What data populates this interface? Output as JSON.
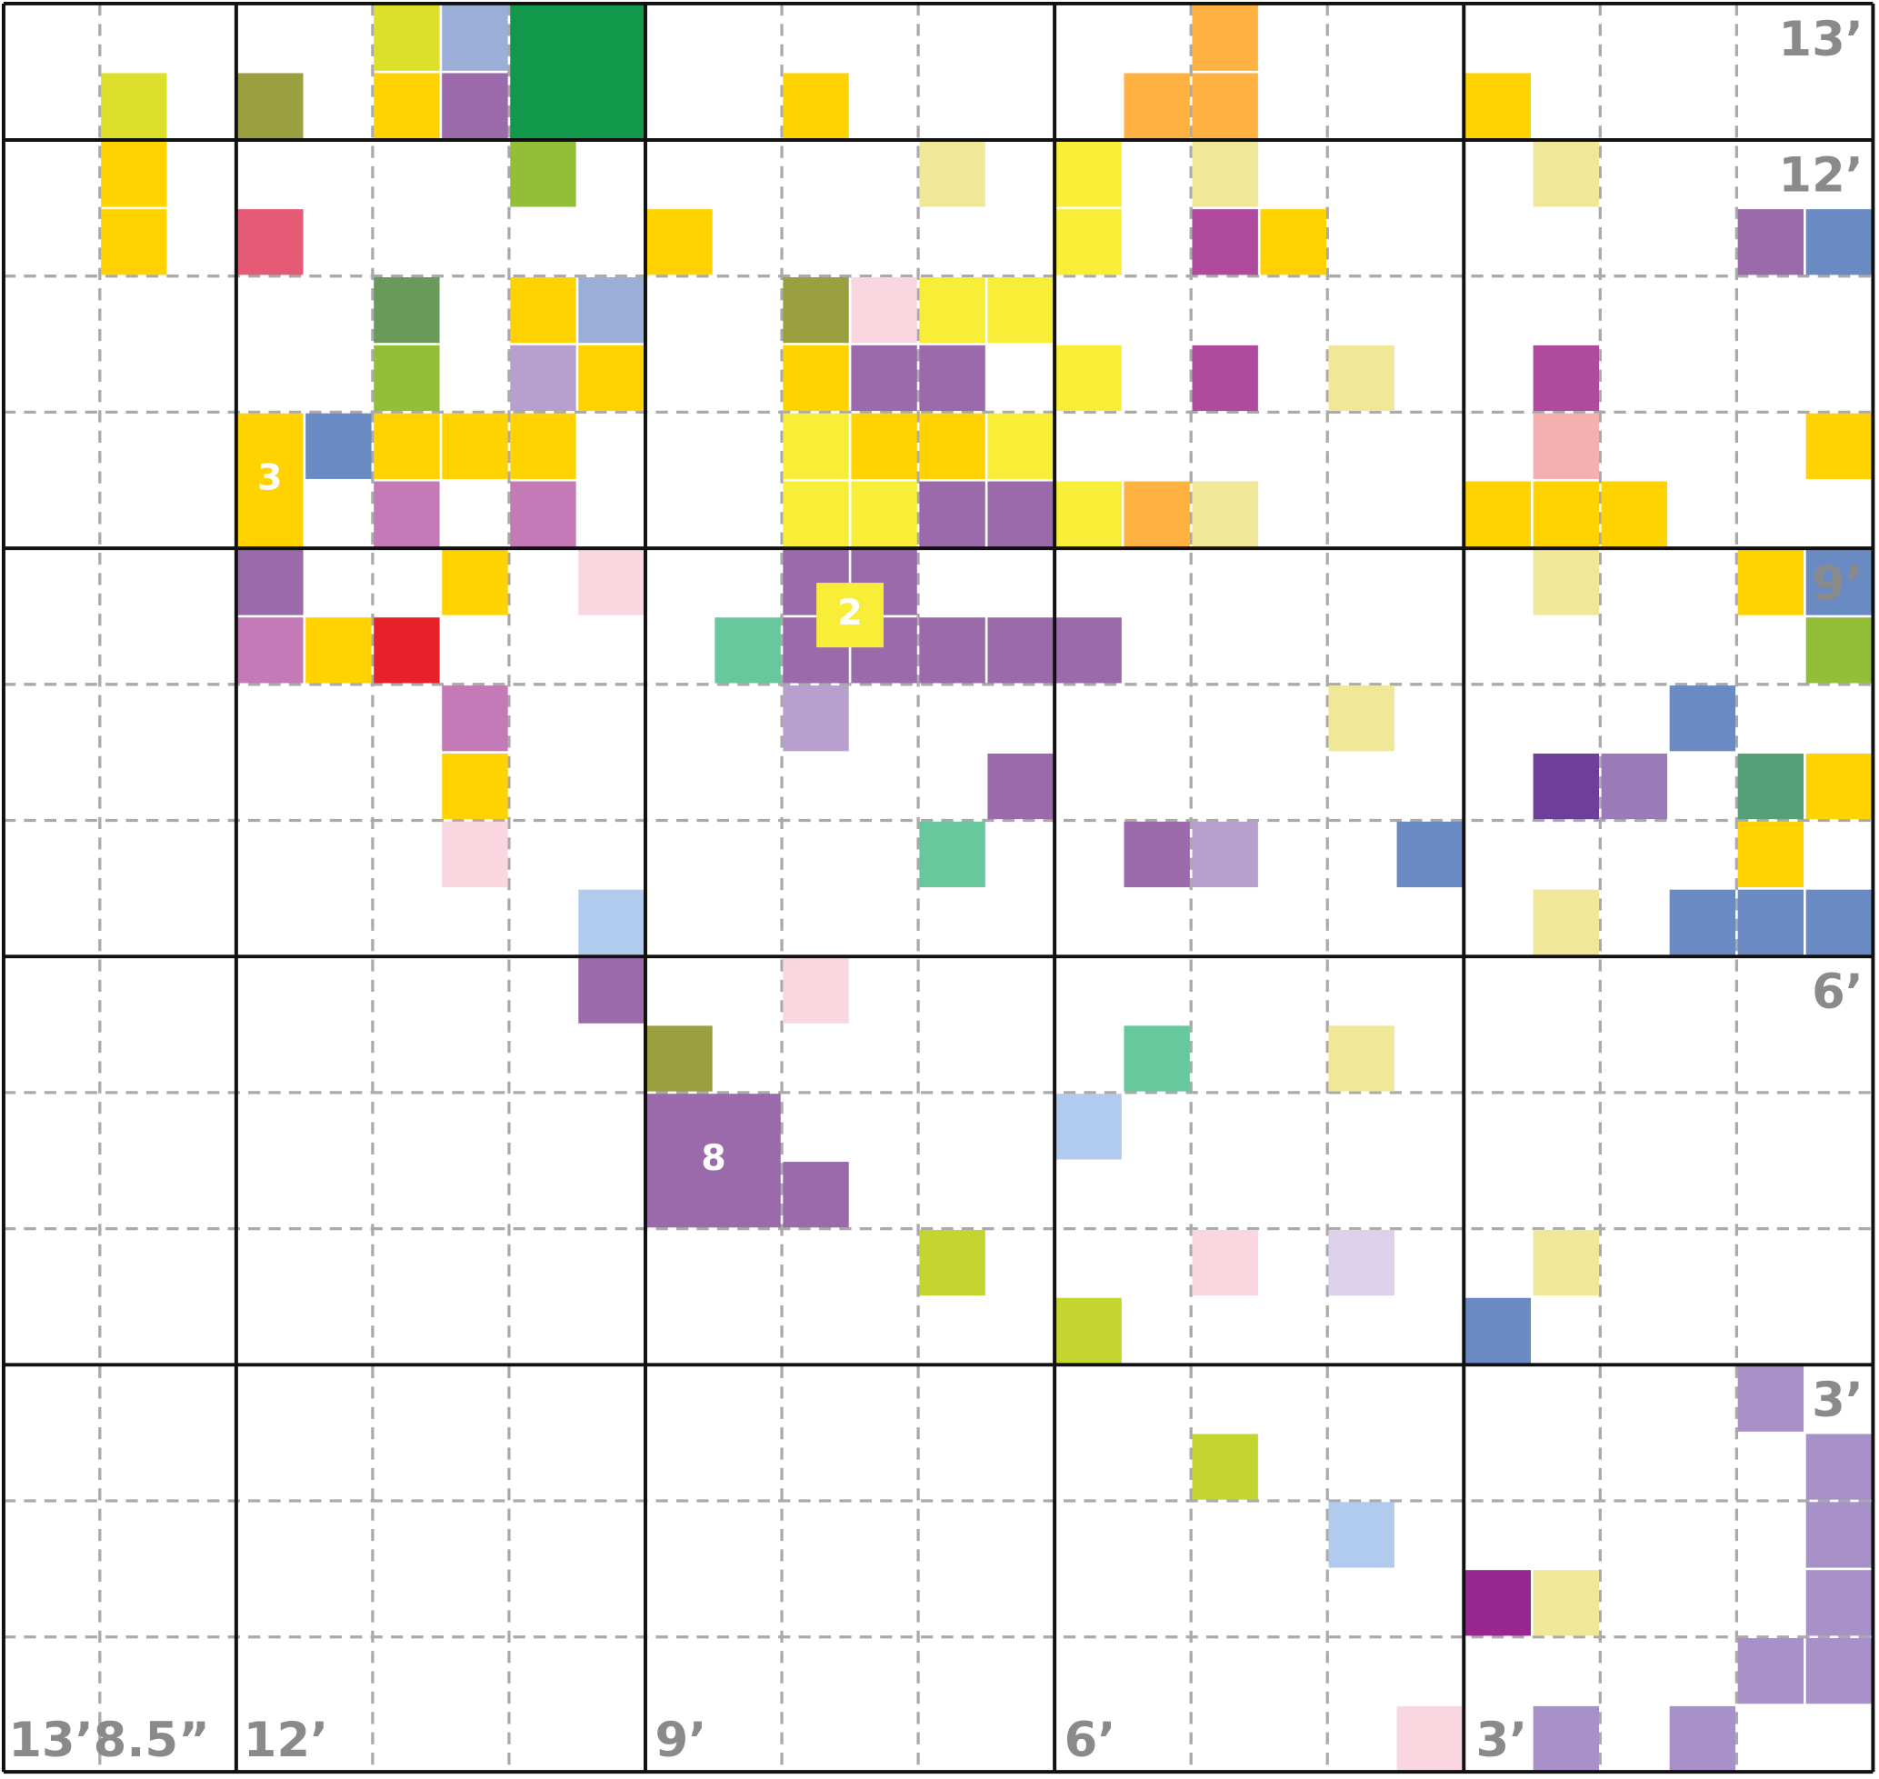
{
  "right_labels": [
    "13’",
    "12’",
    "9’",
    "6’",
    "3’"
  ],
  "bottom_labels": [
    "13’8.5”",
    "12’",
    "9’",
    "6’",
    "3’"
  ],
  "markers": [
    "3",
    "2",
    "8"
  ]
}
